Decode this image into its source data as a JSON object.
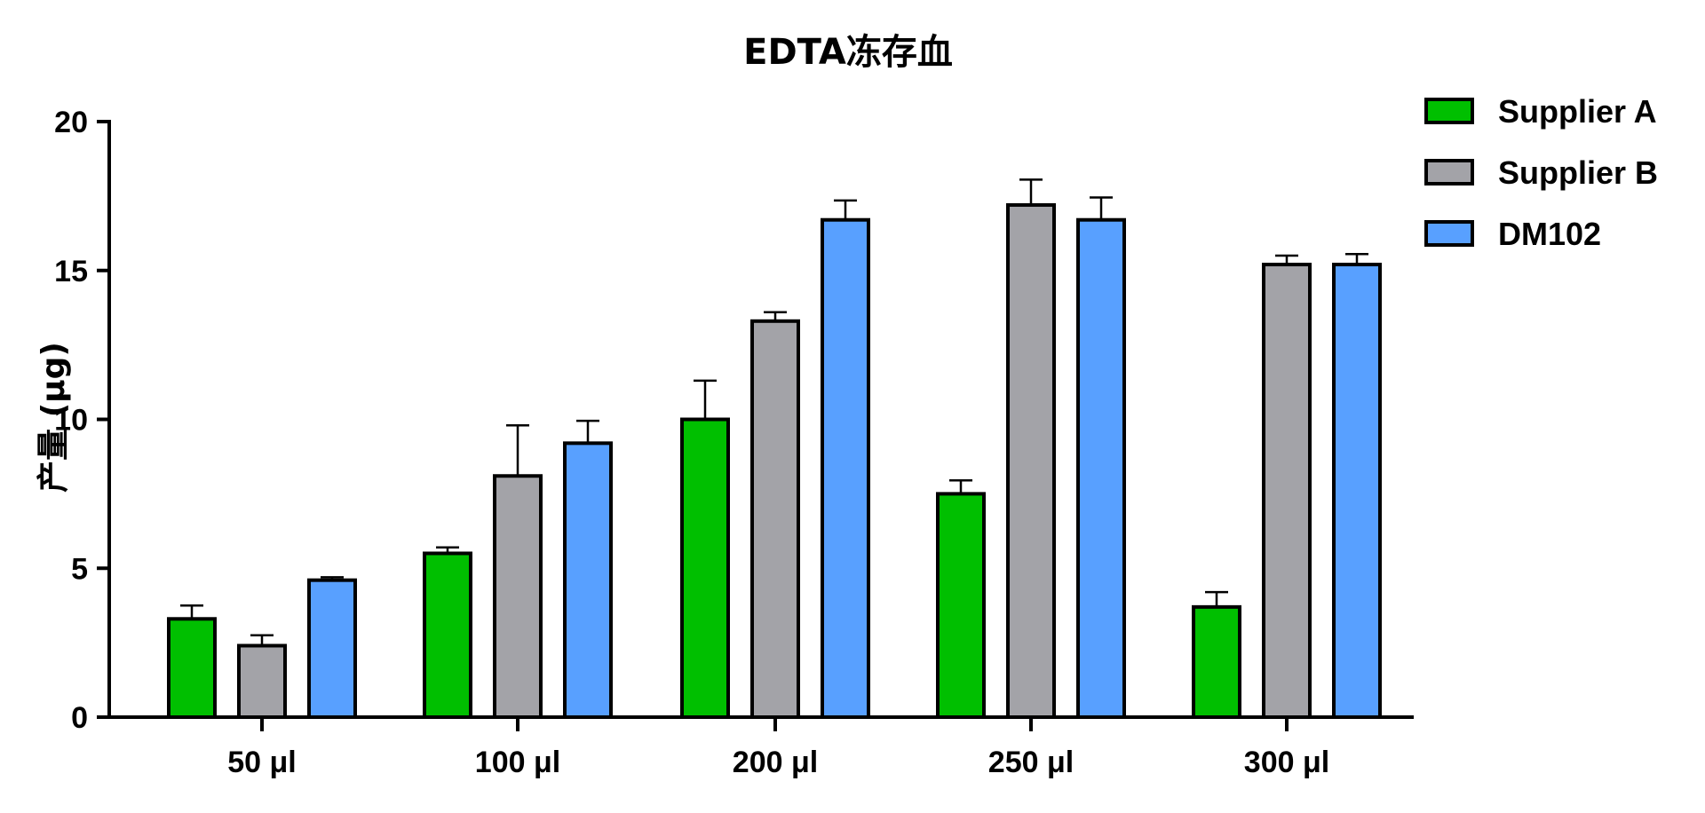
{
  "chart_data": {
    "type": "bar",
    "title": "EDTA冻存血",
    "xlabel": "",
    "ylabel": "产量 (μg)",
    "ylim": [
      0,
      20
    ],
    "yticks": [
      "0",
      "5",
      "10",
      "15",
      "20"
    ],
    "categories": [
      "50 μl",
      "100 μl",
      "200 μl",
      "250 μl",
      "300 μl"
    ],
    "legend_position": "top-right",
    "grid": false,
    "series": [
      {
        "name": "Supplier A",
        "color": "#00bf00",
        "values": [
          3.3,
          5.5,
          10.0,
          7.5,
          3.7
        ],
        "errors": [
          0.45,
          0.2,
          1.3,
          0.45,
          0.5
        ]
      },
      {
        "name": "Supplier B",
        "color": "#a3a3a8",
        "values": [
          2.4,
          8.1,
          13.3,
          17.2,
          15.2
        ],
        "errors": [
          0.35,
          1.7,
          0.3,
          0.85,
          0.3
        ]
      },
      {
        "name": "DM102",
        "color": "#58a0ff",
        "values": [
          4.6,
          9.2,
          16.7,
          16.7,
          15.2
        ],
        "errors": [
          0.1,
          0.75,
          0.65,
          0.75,
          0.35
        ]
      }
    ]
  }
}
